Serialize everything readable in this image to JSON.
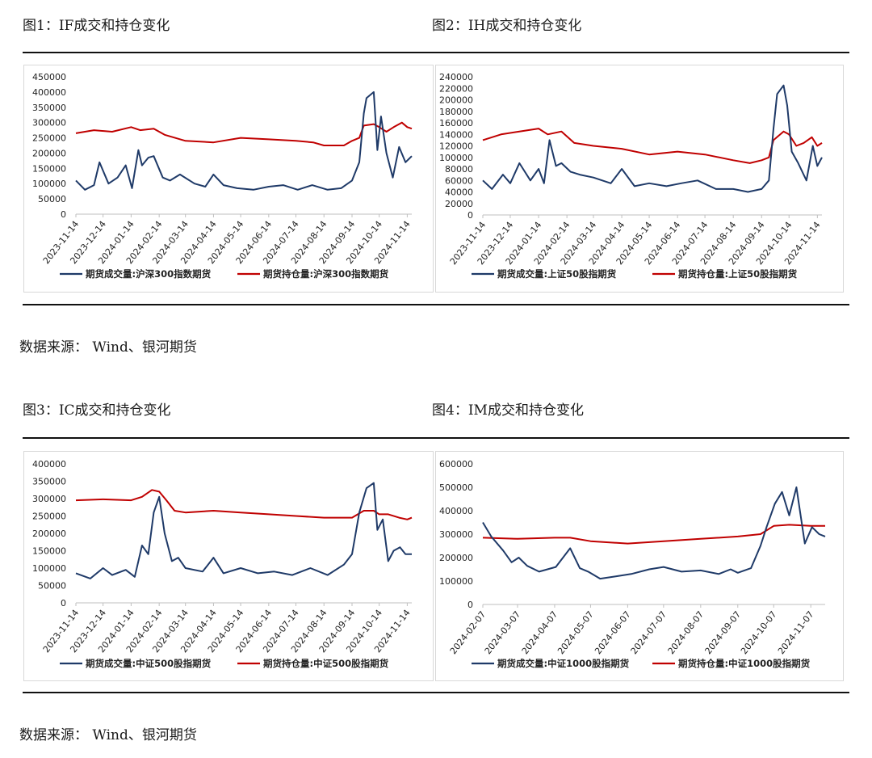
{
  "figures": [
    {
      "title": "图1：IF成交和持仓变化"
    },
    {
      "title": "图2：IH成交和持仓变化"
    },
    {
      "title": "图3：IC成交和持仓变化"
    },
    {
      "title": "图4：IM成交和持仓变化"
    }
  ],
  "sources": [
    "数据来源：  Wind、银河期货",
    "数据来源：  Wind、银河期货"
  ],
  "colors": {
    "volume": "#1f3a68",
    "open_interest": "#c00000",
    "axis": "#bfbfbf"
  },
  "chart_data": [
    {
      "type": "line",
      "title": "",
      "xlabel": "",
      "ylabel": "",
      "ylim": [
        0,
        450000
      ],
      "yticks": [
        "450000",
        "400000",
        "350000",
        "300000",
        "250000",
        "200000",
        "150000",
        "100000",
        "50000",
        "0"
      ],
      "xticks": [
        "2023-11-14",
        "2023-12-14",
        "2024-01-14",
        "2024-02-14",
        "2024-03-14",
        "2024-04-14",
        "2024-05-14",
        "2024-06-14",
        "2024-07-14",
        "2024-08-14",
        "2024-09-14",
        "2024-10-14",
        "2024-11-14"
      ],
      "x_range": [
        "2023-11-14",
        "2024-11-19"
      ],
      "legend_position": "bottom",
      "series": [
        {
          "name": "期货成交量:沪深300指数期货",
          "color": "#1f3a68",
          "x": [
            "2023-11-14",
            "2023-11-24",
            "2023-12-04",
            "2023-12-10",
            "2023-12-20",
            "2023-12-30",
            "2024-01-08",
            "2024-01-15",
            "2024-01-22",
            "2024-01-26",
            "2024-02-02",
            "2024-02-08",
            "2024-02-18",
            "2024-02-26",
            "2024-03-08",
            "2024-03-24",
            "2024-04-05",
            "2024-04-14",
            "2024-04-25",
            "2024-05-10",
            "2024-05-28",
            "2024-06-14",
            "2024-06-30",
            "2024-07-16",
            "2024-08-01",
            "2024-08-18",
            "2024-09-02",
            "2024-09-14",
            "2024-09-22",
            "2024-09-27",
            "2024-09-30",
            "2024-10-08",
            "2024-10-12",
            "2024-10-16",
            "2024-10-22",
            "2024-10-29",
            "2024-11-05",
            "2024-11-12",
            "2024-11-19"
          ],
          "values": [
            110000,
            80000,
            95000,
            170000,
            100000,
            120000,
            160000,
            85000,
            210000,
            160000,
            185000,
            190000,
            120000,
            110000,
            130000,
            100000,
            90000,
            130000,
            95000,
            85000,
            80000,
            90000,
            95000,
            80000,
            95000,
            80000,
            85000,
            110000,
            170000,
            330000,
            380000,
            400000,
            210000,
            320000,
            200000,
            120000,
            220000,
            170000,
            190000
          ]
        },
        {
          "name": "期货持仓量:沪深300指数期货",
          "color": "#c00000",
          "x": [
            "2023-11-14",
            "2023-12-04",
            "2023-12-24",
            "2024-01-14",
            "2024-01-24",
            "2024-02-08",
            "2024-02-20",
            "2024-03-14",
            "2024-04-14",
            "2024-05-14",
            "2024-06-14",
            "2024-07-14",
            "2024-08-02",
            "2024-08-14",
            "2024-09-05",
            "2024-09-14",
            "2024-09-22",
            "2024-09-27",
            "2024-10-08",
            "2024-10-14",
            "2024-10-22",
            "2024-10-30",
            "2024-11-08",
            "2024-11-14",
            "2024-11-19"
          ],
          "values": [
            265000,
            275000,
            270000,
            285000,
            275000,
            280000,
            260000,
            240000,
            235000,
            250000,
            245000,
            240000,
            235000,
            225000,
            225000,
            240000,
            250000,
            290000,
            295000,
            285000,
            270000,
            285000,
            300000,
            285000,
            280000
          ]
        }
      ]
    },
    {
      "type": "line",
      "title": "",
      "xlabel": "",
      "ylabel": "",
      "ylim": [
        0,
        240000
      ],
      "yticks": [
        "240000",
        "220000",
        "200000",
        "180000",
        "160000",
        "140000",
        "120000",
        "100000",
        "80000",
        "60000",
        "40000",
        "20000",
        "0"
      ],
      "xticks": [
        "2023-11-14",
        "2023-12-14",
        "2024-01-14",
        "2024-02-14",
        "2024-03-14",
        "2024-04-14",
        "2024-05-14",
        "2024-06-14",
        "2024-07-14",
        "2024-08-14",
        "2024-09-14",
        "2024-10-14",
        "2024-11-14"
      ],
      "x_range": [
        "2023-11-14",
        "2024-11-19"
      ],
      "legend_position": "bottom",
      "series": [
        {
          "name": "期货成交量:上证50股指期货",
          "color": "#1f3a68",
          "x": [
            "2023-11-14",
            "2023-11-24",
            "2023-12-06",
            "2023-12-14",
            "2023-12-24",
            "2024-01-05",
            "2024-01-14",
            "2024-01-20",
            "2024-01-26",
            "2024-02-02",
            "2024-02-08",
            "2024-02-18",
            "2024-02-28",
            "2024-03-14",
            "2024-04-02",
            "2024-04-14",
            "2024-04-28",
            "2024-05-14",
            "2024-06-02",
            "2024-06-18",
            "2024-07-06",
            "2024-07-26",
            "2024-08-14",
            "2024-08-30",
            "2024-09-14",
            "2024-09-22",
            "2024-09-27",
            "2024-10-01",
            "2024-10-08",
            "2024-10-12",
            "2024-10-17",
            "2024-10-24",
            "2024-11-02",
            "2024-11-09",
            "2024-11-14",
            "2024-11-19"
          ],
          "values": [
            60000,
            45000,
            70000,
            55000,
            90000,
            60000,
            80000,
            55000,
            130000,
            85000,
            90000,
            75000,
            70000,
            65000,
            55000,
            80000,
            50000,
            55000,
            50000,
            55000,
            60000,
            45000,
            45000,
            40000,
            45000,
            60000,
            150000,
            210000,
            225000,
            190000,
            110000,
            90000,
            60000,
            120000,
            85000,
            100000
          ]
        },
        {
          "name": "期货持仓量:上证50股指期货",
          "color": "#c00000",
          "x": [
            "2023-11-14",
            "2023-12-04",
            "2023-12-24",
            "2024-01-14",
            "2024-01-24",
            "2024-02-08",
            "2024-02-22",
            "2024-03-14",
            "2024-04-14",
            "2024-05-14",
            "2024-06-14",
            "2024-07-14",
            "2024-08-14",
            "2024-09-01",
            "2024-09-14",
            "2024-09-22",
            "2024-09-27",
            "2024-10-08",
            "2024-10-14",
            "2024-10-22",
            "2024-10-30",
            "2024-11-08",
            "2024-11-14",
            "2024-11-19"
          ],
          "values": [
            130000,
            140000,
            145000,
            150000,
            140000,
            145000,
            125000,
            120000,
            115000,
            105000,
            110000,
            105000,
            95000,
            90000,
            95000,
            100000,
            130000,
            145000,
            140000,
            120000,
            125000,
            135000,
            120000,
            125000
          ]
        }
      ]
    },
    {
      "type": "line",
      "title": "",
      "xlabel": "",
      "ylabel": "",
      "ylim": [
        0,
        400000
      ],
      "yticks": [
        "400000",
        "350000",
        "300000",
        "250000",
        "200000",
        "150000",
        "100000",
        "50000",
        "0"
      ],
      "xticks": [
        "2023-11-14",
        "2023-12-14",
        "2024-01-14",
        "2024-02-14",
        "2024-03-14",
        "2024-04-14",
        "2024-05-14",
        "2024-06-14",
        "2024-07-14",
        "2024-08-14",
        "2024-09-14",
        "2024-10-14",
        "2024-11-14"
      ],
      "x_range": [
        "2023-11-14",
        "2024-11-19"
      ],
      "legend_position": "bottom",
      "series": [
        {
          "name": "期货成交量:中证500股指期货",
          "color": "#1f3a68",
          "x": [
            "2023-11-14",
            "2023-11-30",
            "2023-12-14",
            "2023-12-24",
            "2024-01-08",
            "2024-01-18",
            "2024-01-26",
            "2024-02-02",
            "2024-02-08",
            "2024-02-14",
            "2024-02-20",
            "2024-02-28",
            "2024-03-06",
            "2024-03-14",
            "2024-04-02",
            "2024-04-14",
            "2024-04-25",
            "2024-05-14",
            "2024-06-02",
            "2024-06-20",
            "2024-07-10",
            "2024-07-30",
            "2024-08-18",
            "2024-09-05",
            "2024-09-14",
            "2024-09-22",
            "2024-09-30",
            "2024-10-08",
            "2024-10-12",
            "2024-10-18",
            "2024-10-24",
            "2024-10-30",
            "2024-11-06",
            "2024-11-12",
            "2024-11-19"
          ],
          "values": [
            85000,
            70000,
            100000,
            80000,
            95000,
            75000,
            165000,
            140000,
            260000,
            305000,
            200000,
            120000,
            130000,
            100000,
            90000,
            130000,
            85000,
            100000,
            85000,
            90000,
            80000,
            100000,
            80000,
            110000,
            140000,
            260000,
            330000,
            345000,
            210000,
            240000,
            120000,
            150000,
            160000,
            140000,
            140000
          ]
        },
        {
          "name": "期货持仓量:中证500股指期货",
          "color": "#c00000",
          "x": [
            "2023-11-14",
            "2023-12-14",
            "2024-01-14",
            "2024-01-26",
            "2024-02-06",
            "2024-02-14",
            "2024-02-22",
            "2024-03-02",
            "2024-03-14",
            "2024-04-14",
            "2024-05-14",
            "2024-06-14",
            "2024-07-14",
            "2024-08-14",
            "2024-09-14",
            "2024-09-27",
            "2024-10-08",
            "2024-10-14",
            "2024-10-24",
            "2024-11-05",
            "2024-11-14",
            "2024-11-19"
          ],
          "values": [
            295000,
            298000,
            295000,
            305000,
            325000,
            320000,
            295000,
            265000,
            260000,
            265000,
            260000,
            255000,
            250000,
            245000,
            245000,
            265000,
            265000,
            255000,
            255000,
            245000,
            240000,
            245000
          ]
        }
      ]
    },
    {
      "type": "line",
      "title": "",
      "xlabel": "",
      "ylabel": "",
      "ylim": [
        0,
        600000
      ],
      "yticks": [
        "600000",
        "500000",
        "400000",
        "300000",
        "200000",
        "100000",
        "0"
      ],
      "xticks": [
        "2024-02-07",
        "2024-03-07",
        "2024-04-07",
        "2024-05-07",
        "2024-06-07",
        "2024-07-07",
        "2024-08-07",
        "2024-09-07",
        "2024-10-07",
        "2024-11-07"
      ],
      "x_range": [
        "2024-02-07",
        "2024-11-19"
      ],
      "legend_position": "bottom",
      "series": [
        {
          "name": "期货成交量:中证1000股指期货",
          "color": "#1f3a68",
          "x": [
            "2024-02-07",
            "2024-02-14",
            "2024-02-24",
            "2024-03-02",
            "2024-03-08",
            "2024-03-15",
            "2024-03-25",
            "2024-04-08",
            "2024-04-20",
            "2024-04-28",
            "2024-05-05",
            "2024-05-15",
            "2024-05-28",
            "2024-06-10",
            "2024-06-25",
            "2024-07-07",
            "2024-07-22",
            "2024-08-07",
            "2024-08-22",
            "2024-09-01",
            "2024-09-07",
            "2024-09-18",
            "2024-09-26",
            "2024-10-01",
            "2024-10-08",
            "2024-10-14",
            "2024-10-20",
            "2024-10-26",
            "2024-11-02",
            "2024-11-08",
            "2024-11-14",
            "2024-11-19"
          ],
          "values": [
            350000,
            290000,
            230000,
            180000,
            200000,
            165000,
            140000,
            160000,
            240000,
            155000,
            140000,
            110000,
            120000,
            130000,
            150000,
            160000,
            140000,
            145000,
            130000,
            150000,
            135000,
            155000,
            250000,
            330000,
            430000,
            480000,
            380000,
            500000,
            260000,
            330000,
            300000,
            290000
          ]
        },
        {
          "name": "期货持仓量:中证1000股指期货",
          "color": "#c00000",
          "x": [
            "2024-02-07",
            "2024-03-07",
            "2024-04-07",
            "2024-04-20",
            "2024-05-07",
            "2024-06-07",
            "2024-07-07",
            "2024-08-07",
            "2024-09-07",
            "2024-09-26",
            "2024-10-07",
            "2024-10-20",
            "2024-11-07",
            "2024-11-19"
          ],
          "values": [
            285000,
            280000,
            285000,
            285000,
            270000,
            260000,
            270000,
            280000,
            290000,
            300000,
            335000,
            340000,
            335000,
            335000
          ]
        }
      ]
    }
  ]
}
